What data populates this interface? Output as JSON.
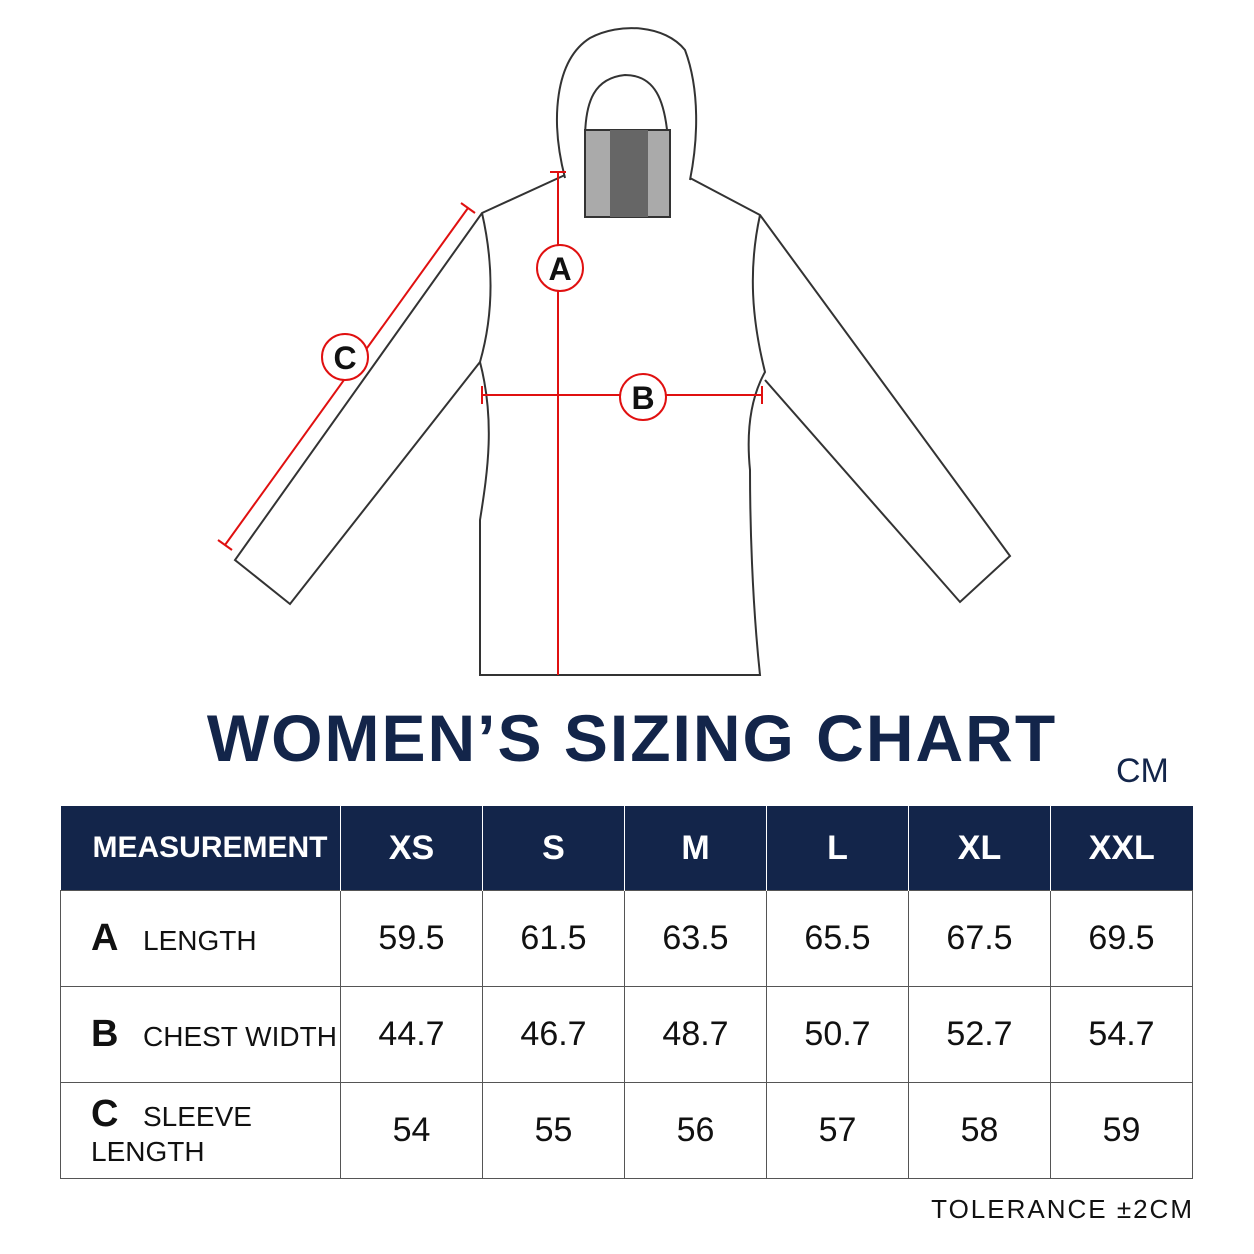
{
  "diagram": {
    "labels": [
      "A",
      "B",
      "C"
    ]
  },
  "title": "WOMEN’S SIZING CHART",
  "unit": "CM",
  "table": {
    "header": [
      "MEASUREMENT",
      "XS",
      "S",
      "M",
      "L",
      "XL",
      "XXL"
    ],
    "rows": [
      {
        "letter": "A",
        "label": "LENGTH",
        "values": [
          59.5,
          61.5,
          63.5,
          65.5,
          67.5,
          69.5
        ]
      },
      {
        "letter": "B",
        "label": "CHEST WIDTH",
        "values": [
          44.7,
          46.7,
          48.7,
          50.7,
          52.7,
          54.7
        ]
      },
      {
        "letter": "C",
        "label": "SLEEVE LENGTH",
        "values": [
          54,
          55,
          56,
          57,
          58,
          59
        ]
      }
    ]
  },
  "tolerance": "TOLERANCE ±2CM"
}
